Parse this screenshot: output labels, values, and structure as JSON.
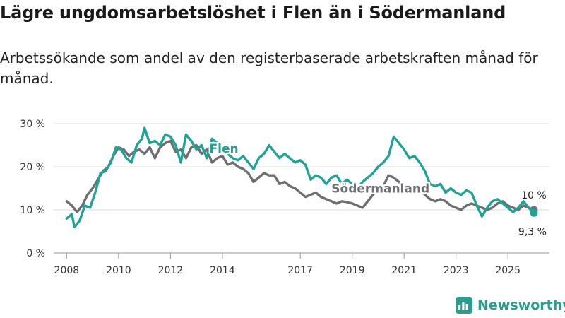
{
  "title": "Lägre ungdomsarbetslöshet i Flen än i Södermanland",
  "subtitle": "Arbetssökande som andel av den registerbaserade arbetskraften månad för månad.",
  "brand": {
    "name": "Newsworthy",
    "icon": "bar-chart-icon",
    "color": "#2a9d8f"
  },
  "chart_data": {
    "type": "line",
    "title": "Lägre ungdomsarbetslöshet i Flen än i Södermanland",
    "xlabel": "",
    "ylabel": "",
    "xlim": [
      2007.5,
      2026.6
    ],
    "ylim": [
      0,
      30
    ],
    "yticks": [
      {
        "value": 0,
        "label": "0 %"
      },
      {
        "value": 10,
        "label": "10 %"
      },
      {
        "value": 20,
        "label": "20 %"
      },
      {
        "value": 30,
        "label": "30 %"
      }
    ],
    "xticks": [
      {
        "value": 2008,
        "label": "2008"
      },
      {
        "value": 2010,
        "label": "2010"
      },
      {
        "value": 2012,
        "label": "2012"
      },
      {
        "value": 2014,
        "label": "2014"
      },
      {
        "value": 2017,
        "label": "2017"
      },
      {
        "value": 2019,
        "label": "2019"
      },
      {
        "value": 2021,
        "label": "2021"
      },
      {
        "value": 2023,
        "label": "2023"
      },
      {
        "value": 2025,
        "label": "2025"
      }
    ],
    "grid": true,
    "series": [
      {
        "name": "Södermanland",
        "color": "#6e6e73",
        "label_at": [
          2018.2,
          14.0
        ],
        "end_label": "10 %",
        "points": [
          [
            2008.0,
            12.0
          ],
          [
            2008.2,
            11.0
          ],
          [
            2008.4,
            9.5
          ],
          [
            2008.6,
            11.0
          ],
          [
            2008.8,
            13.5
          ],
          [
            2009.0,
            15.0
          ],
          [
            2009.2,
            17.0
          ],
          [
            2009.4,
            19.0
          ],
          [
            2009.6,
            20.0
          ],
          [
            2009.8,
            22.5
          ],
          [
            2010.0,
            24.5
          ],
          [
            2010.2,
            24.0
          ],
          [
            2010.4,
            22.5
          ],
          [
            2010.6,
            23.5
          ],
          [
            2010.8,
            24.0
          ],
          [
            2011.0,
            23.0
          ],
          [
            2011.2,
            24.5
          ],
          [
            2011.4,
            22.0
          ],
          [
            2011.6,
            24.5
          ],
          [
            2011.8,
            25.5
          ],
          [
            2012.0,
            26.0
          ],
          [
            2012.2,
            23.5
          ],
          [
            2012.4,
            24.0
          ],
          [
            2012.6,
            22.0
          ],
          [
            2012.8,
            24.5
          ],
          [
            2013.0,
            25.0
          ],
          [
            2013.2,
            23.0
          ],
          [
            2013.4,
            24.0
          ],
          [
            2013.6,
            21.0
          ],
          [
            2013.8,
            22.0
          ],
          [
            2014.0,
            22.5
          ],
          [
            2014.2,
            20.5
          ],
          [
            2014.4,
            21.0
          ],
          [
            2014.6,
            20.0
          ],
          [
            2014.8,
            19.5
          ],
          [
            2015.0,
            18.5
          ],
          [
            2015.2,
            16.5
          ],
          [
            2015.4,
            17.5
          ],
          [
            2015.6,
            18.5
          ],
          [
            2015.8,
            18.0
          ],
          [
            2016.0,
            18.0
          ],
          [
            2016.2,
            16.0
          ],
          [
            2016.4,
            16.5
          ],
          [
            2016.6,
            15.5
          ],
          [
            2016.8,
            15.0
          ],
          [
            2017.0,
            14.0
          ],
          [
            2017.2,
            13.0
          ],
          [
            2017.4,
            13.5
          ],
          [
            2017.6,
            14.0
          ],
          [
            2017.8,
            13.0
          ],
          [
            2018.0,
            12.5
          ],
          [
            2018.2,
            12.0
          ],
          [
            2018.4,
            11.5
          ],
          [
            2018.6,
            12.0
          ],
          [
            2018.8,
            11.8
          ],
          [
            2019.0,
            11.5
          ],
          [
            2019.2,
            11.0
          ],
          [
            2019.4,
            10.5
          ],
          [
            2019.6,
            12.0
          ],
          [
            2019.8,
            13.5
          ],
          [
            2020.0,
            15.0
          ],
          [
            2020.2,
            15.5
          ],
          [
            2020.4,
            18.0
          ],
          [
            2020.6,
            17.5
          ],
          [
            2020.8,
            16.5
          ],
          [
            2021.0,
            15.5
          ],
          [
            2021.2,
            15.0
          ],
          [
            2021.4,
            14.5
          ],
          [
            2021.6,
            15.0
          ],
          [
            2021.8,
            13.5
          ],
          [
            2022.0,
            12.5
          ],
          [
            2022.2,
            12.0
          ],
          [
            2022.4,
            12.5
          ],
          [
            2022.6,
            12.0
          ],
          [
            2022.8,
            11.0
          ],
          [
            2023.0,
            10.5
          ],
          [
            2023.2,
            10.0
          ],
          [
            2023.4,
            11.0
          ],
          [
            2023.6,
            11.5
          ],
          [
            2023.8,
            11.0
          ],
          [
            2024.0,
            10.5
          ],
          [
            2024.2,
            10.0
          ],
          [
            2024.4,
            10.5
          ],
          [
            2024.6,
            11.5
          ],
          [
            2024.8,
            12.0
          ],
          [
            2025.0,
            11.0
          ],
          [
            2025.2,
            10.5
          ],
          [
            2025.4,
            10.0
          ],
          [
            2025.6,
            11.0
          ],
          [
            2025.8,
            10.5
          ],
          [
            2026.0,
            10.0
          ]
        ]
      },
      {
        "name": "Flen",
        "color": "#1fa396",
        "label_at": [
          2013.5,
          23.3
        ],
        "end_label": "9,3 %",
        "points": [
          [
            2008.0,
            8.0
          ],
          [
            2008.2,
            9.0
          ],
          [
            2008.3,
            6.0
          ],
          [
            2008.5,
            7.5
          ],
          [
            2008.7,
            11.0
          ],
          [
            2008.9,
            10.5
          ],
          [
            2009.1,
            14.0
          ],
          [
            2009.3,
            18.5
          ],
          [
            2009.5,
            19.0
          ],
          [
            2009.7,
            21.0
          ],
          [
            2009.9,
            24.5
          ],
          [
            2010.1,
            24.0
          ],
          [
            2010.3,
            22.0
          ],
          [
            2010.5,
            21.0
          ],
          [
            2010.7,
            25.0
          ],
          [
            2010.9,
            26.5
          ],
          [
            2011.0,
            29.0
          ],
          [
            2011.2,
            25.5
          ],
          [
            2011.4,
            26.0
          ],
          [
            2011.6,
            25.0
          ],
          [
            2011.8,
            27.5
          ],
          [
            2012.0,
            27.0
          ],
          [
            2012.2,
            25.0
          ],
          [
            2012.4,
            21.0
          ],
          [
            2012.6,
            27.5
          ],
          [
            2012.8,
            26.0
          ],
          [
            2013.0,
            24.0
          ],
          [
            2013.2,
            25.0
          ],
          [
            2013.4,
            22.0
          ],
          [
            2013.6,
            26.5
          ],
          [
            2013.8,
            25.5
          ],
          [
            2014.0,
            24.0
          ],
          [
            2014.2,
            23.0
          ],
          [
            2014.4,
            22.0
          ],
          [
            2014.6,
            21.5
          ],
          [
            2014.8,
            22.5
          ],
          [
            2015.0,
            21.0
          ],
          [
            2015.2,
            19.5
          ],
          [
            2015.4,
            22.0
          ],
          [
            2015.6,
            23.0
          ],
          [
            2015.8,
            25.0
          ],
          [
            2016.0,
            23.5
          ],
          [
            2016.2,
            22.0
          ],
          [
            2016.4,
            23.0
          ],
          [
            2016.6,
            22.0
          ],
          [
            2016.8,
            21.0
          ],
          [
            2017.0,
            21.5
          ],
          [
            2017.2,
            20.5
          ],
          [
            2017.4,
            17.0
          ],
          [
            2017.6,
            18.0
          ],
          [
            2017.8,
            17.5
          ],
          [
            2018.0,
            16.0
          ],
          [
            2018.2,
            17.5
          ],
          [
            2018.4,
            18.0
          ],
          [
            2018.6,
            16.0
          ],
          [
            2018.8,
            17.0
          ],
          [
            2019.0,
            16.0
          ],
          [
            2019.2,
            15.0
          ],
          [
            2019.4,
            16.5
          ],
          [
            2019.6,
            17.5
          ],
          [
            2019.8,
            18.5
          ],
          [
            2020.0,
            20.0
          ],
          [
            2020.2,
            21.0
          ],
          [
            2020.4,
            22.5
          ],
          [
            2020.6,
            27.0
          ],
          [
            2020.8,
            25.5
          ],
          [
            2021.0,
            24.0
          ],
          [
            2021.2,
            22.0
          ],
          [
            2021.4,
            22.5
          ],
          [
            2021.6,
            21.0
          ],
          [
            2021.8,
            19.0
          ],
          [
            2022.0,
            16.0
          ],
          [
            2022.2,
            15.5
          ],
          [
            2022.4,
            16.0
          ],
          [
            2022.6,
            14.0
          ],
          [
            2022.8,
            15.0
          ],
          [
            2023.0,
            14.0
          ],
          [
            2023.2,
            13.5
          ],
          [
            2023.4,
            14.5
          ],
          [
            2023.6,
            14.0
          ],
          [
            2023.8,
            11.0
          ],
          [
            2024.0,
            8.5
          ],
          [
            2024.2,
            10.5
          ],
          [
            2024.4,
            12.0
          ],
          [
            2024.6,
            12.5
          ],
          [
            2024.8,
            11.5
          ],
          [
            2025.0,
            10.5
          ],
          [
            2025.2,
            9.5
          ],
          [
            2025.4,
            10.5
          ],
          [
            2025.6,
            12.0
          ],
          [
            2025.8,
            10.5
          ],
          [
            2026.0,
            9.3
          ]
        ]
      }
    ]
  }
}
